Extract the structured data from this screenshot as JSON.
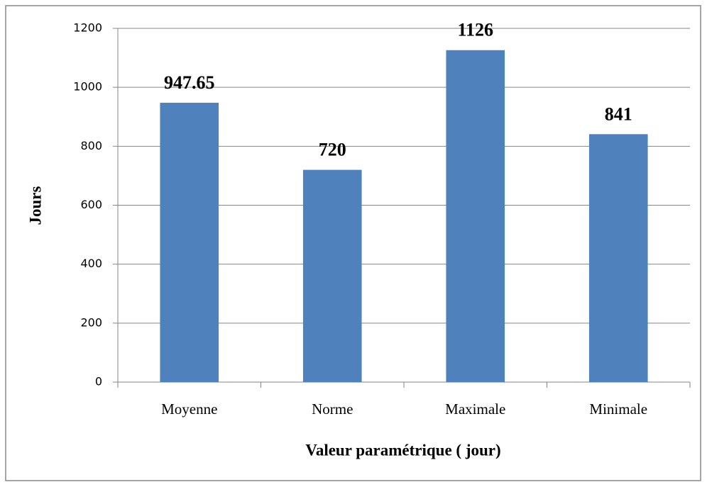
{
  "chart_data": {
    "type": "bar",
    "categories": [
      "Moyenne",
      "Norme",
      "Maximale",
      "Minimale"
    ],
    "values": [
      947.65,
      720,
      1126,
      841
    ],
    "color": "#4f81bd",
    "ylim": [
      0,
      1200
    ],
    "yticks": [
      0,
      200,
      400,
      600,
      800,
      1000,
      1200
    ],
    "grid": true,
    "ylabel": "Jours",
    "xlabel": "Valeur paramétrique ( jour)"
  }
}
